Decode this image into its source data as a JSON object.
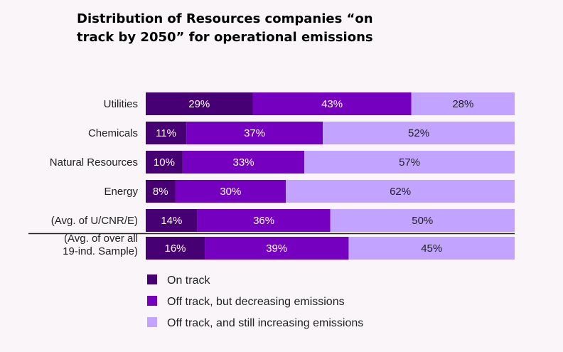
{
  "chart_data": {
    "type": "bar",
    "orientation": "horizontal",
    "stacked": true,
    "title": "Distribution of Resources companies “on track by 2050” for operational emissions",
    "categories": [
      [
        "Utilities"
      ],
      [
        "Chemicals"
      ],
      [
        "Natural Resources"
      ],
      [
        "Energy"
      ],
      [
        "(Avg. of U/CNR/E)"
      ],
      [
        "(Avg. of over all",
        "19-ind. Sample)"
      ]
    ],
    "series": [
      {
        "name": "On track",
        "color": "#460073",
        "values": [
          29,
          11,
          10,
          8,
          14,
          16
        ]
      },
      {
        "name": "Off track, but decreasing emissions",
        "color": "#7500c0",
        "values": [
          43,
          37,
          33,
          30,
          36,
          39
        ]
      },
      {
        "name": "Off track, and still increasing emissions",
        "color": "#c2a3ff",
        "values": [
          28,
          52,
          57,
          62,
          50,
          45
        ]
      }
    ],
    "value_suffix": "%",
    "xlim": [
      0,
      100
    ],
    "grid": false,
    "legend_position": "bottom-left",
    "separator_before_last_category": true
  }
}
